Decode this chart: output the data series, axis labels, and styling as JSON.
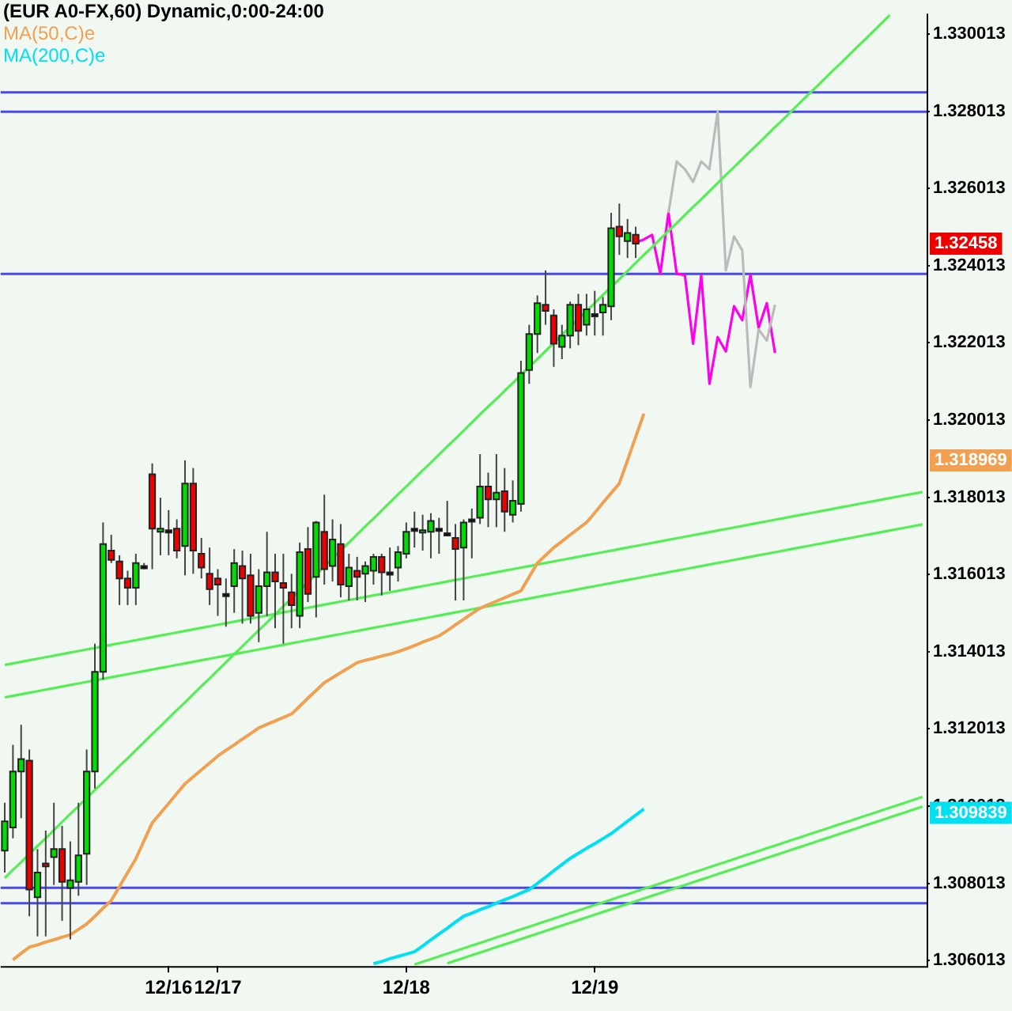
{
  "chart_data": {
    "type": "candlestick",
    "title": "(EUR A0-FX,60) Dynamic,0:00-24:00",
    "categories": [
      null,
      null,
      null,
      null,
      null,
      null,
      null,
      null,
      null,
      null,
      null,
      null,
      null,
      null,
      null,
      null,
      null,
      null,
      null,
      null,
      "12/16",
      null,
      null,
      null,
      null,
      null,
      "12/17",
      null,
      null,
      null,
      null,
      null,
      null,
      null,
      null,
      null,
      null,
      null,
      null,
      null,
      null,
      null,
      null,
      null,
      null,
      null,
      null,
      null,
      null,
      "12/18",
      null,
      null,
      null,
      null,
      null,
      null,
      null,
      null,
      null,
      null,
      null,
      null,
      null,
      null,
      null,
      null,
      null,
      null,
      null,
      null,
      null,
      null,
      "12/19",
      null,
      null,
      null,
      null,
      null,
      null,
      null,
      null,
      null,
      null,
      null,
      null,
      null,
      null,
      null,
      null,
      null,
      null,
      null,
      null,
      null,
      null,
      null,
      null,
      null,
      null,
      null,
      null,
      null,
      null,
      null,
      null,
      null,
      null,
      null,
      null,
      null,
      null,
      null,
      null
    ],
    "ohlc": [
      [
        1.30886,
        1.3101,
        1.30829,
        1.30962
      ],
      [
        1.30946,
        1.3116,
        1.30918,
        1.31091
      ],
      [
        1.31091,
        1.31212,
        1.3097,
        1.31123
      ],
      [
        1.31119,
        1.31148,
        1.30716,
        1.30785
      ],
      [
        1.30765,
        1.3089,
        1.30664,
        1.30829
      ],
      [
        1.30853,
        1.30938,
        1.30664,
        1.30845
      ],
      [
        1.30869,
        1.3101,
        1.30797,
        1.3089
      ],
      [
        1.3089,
        1.3095,
        1.30704,
        1.30805
      ],
      [
        1.30789,
        1.3091,
        1.30656,
        1.30809
      ],
      [
        1.30805,
        1.3101,
        1.30769,
        1.30874
      ],
      [
        1.30878,
        1.31148,
        1.30797,
        1.31091
      ],
      [
        1.31091,
        1.31422,
        1.31047,
        1.31349
      ],
      [
        1.31349,
        1.31736,
        1.31329,
        1.3168
      ],
      [
        1.31663,
        1.31704,
        1.31631,
        1.31639
      ],
      [
        1.31635,
        1.31651,
        1.31522,
        1.31591
      ],
      [
        1.31591,
        1.31611,
        1.31522,
        1.31567
      ],
      [
        1.31567,
        1.31655,
        1.31522,
        1.31631
      ],
      [
        1.31623,
        1.31631,
        1.31615,
        1.31623
      ],
      [
        1.31861,
        1.31889,
        1.31615,
        1.3172
      ],
      [
        1.31712,
        1.318,
        1.31651,
        1.3172
      ],
      [
        1.31716,
        1.31768,
        1.31651,
        1.31716
      ],
      [
        1.3172,
        1.31744,
        1.31643,
        1.31663
      ],
      [
        1.31675,
        1.31897,
        1.31599,
        1.31837
      ],
      [
        1.31837,
        1.31877,
        1.31603,
        1.31663
      ],
      [
        1.31655,
        1.31696,
        1.31591,
        1.31619
      ],
      [
        1.31603,
        1.31671,
        1.31522,
        1.31563
      ],
      [
        1.31591,
        1.31615,
        1.31494,
        1.31575
      ],
      [
        1.31551,
        1.31591,
        1.31466,
        1.31551
      ],
      [
        1.31571,
        1.31667,
        1.31502,
        1.31631
      ],
      [
        1.31623,
        1.31663,
        1.31474,
        1.31591
      ],
      [
        1.31599,
        1.31655,
        1.31474,
        1.31494
      ],
      [
        1.31502,
        1.31615,
        1.31426,
        1.31571
      ],
      [
        1.31571,
        1.31712,
        1.31494,
        1.31607
      ],
      [
        1.31607,
        1.31655,
        1.31462,
        1.31583
      ],
      [
        1.31579,
        1.31655,
        1.31422,
        1.31567
      ],
      [
        1.31555,
        1.31603,
        1.31462,
        1.31522
      ],
      [
        1.31494,
        1.31684,
        1.31462,
        1.31659
      ],
      [
        1.31667,
        1.31724,
        1.3153,
        1.31551
      ],
      [
        1.31595,
        1.3174,
        1.3149,
        1.31736
      ],
      [
        1.31712,
        1.31808,
        1.31575,
        1.31615
      ],
      [
        1.31623,
        1.31744,
        1.31583,
        1.31692
      ],
      [
        1.3168,
        1.31732,
        1.31542,
        1.31575
      ],
      [
        1.31571,
        1.31655,
        1.31534,
        1.31619
      ],
      [
        1.31611,
        1.31647,
        1.31534,
        1.31595
      ],
      [
        1.31603,
        1.31635,
        1.3153,
        1.31623
      ],
      [
        1.31611,
        1.31655,
        1.31575,
        1.31647
      ],
      [
        1.31647,
        1.31655,
        1.31547,
        1.31607
      ],
      [
        1.31607,
        1.31671,
        1.31559,
        1.31607
      ],
      [
        1.31619,
        1.31675,
        1.31583,
        1.31659
      ],
      [
        1.31655,
        1.31736,
        1.31643,
        1.31712
      ],
      [
        1.3172,
        1.31764,
        1.31671,
        1.3172
      ],
      [
        1.31712,
        1.31756,
        1.31663,
        1.31716
      ],
      [
        1.31712,
        1.3176,
        1.31643,
        1.3174
      ],
      [
        1.3172,
        1.31748,
        1.31655,
        1.3172
      ],
      [
        1.31708,
        1.31792,
        1.317,
        1.31708
      ],
      [
        1.31696,
        1.31732,
        1.31534,
        1.31667
      ],
      [
        1.31671,
        1.31744,
        1.31534,
        1.31736
      ],
      [
        1.31744,
        1.31772,
        1.31643,
        1.31744
      ],
      [
        1.31748,
        1.31913,
        1.31732,
        1.31829
      ],
      [
        1.31829,
        1.31865,
        1.31724,
        1.31796
      ],
      [
        1.31796,
        1.31913,
        1.31724,
        1.31813
      ],
      [
        1.31817,
        1.31877,
        1.31712,
        1.31764
      ],
      [
        1.31756,
        1.31845,
        1.31736,
        1.31792
      ],
      [
        1.31784,
        1.32155,
        1.31764,
        1.32123
      ],
      [
        1.32131,
        1.32248,
        1.32095,
        1.32224
      ],
      [
        1.32224,
        1.32324,
        1.32175,
        1.32304
      ],
      [
        1.323,
        1.32389,
        1.32248,
        1.32284
      ],
      [
        1.32272,
        1.32288,
        1.32139,
        1.32199
      ],
      [
        1.32191,
        1.32248,
        1.32159,
        1.3222
      ],
      [
        1.3222,
        1.32308,
        1.32187,
        1.323
      ],
      [
        1.323,
        1.32328,
        1.32195,
        1.32232
      ],
      [
        1.32248,
        1.32328,
        1.3222,
        1.32288
      ],
      [
        1.32276,
        1.32336,
        1.3222,
        1.32276
      ],
      [
        1.3228,
        1.3232,
        1.3222,
        1.323
      ],
      [
        1.32296,
        1.32538,
        1.3226,
        1.32498
      ],
      [
        1.32502,
        1.32562,
        1.32429,
        1.32477
      ],
      [
        1.32465,
        1.32522,
        1.32421,
        1.32486
      ],
      [
        1.32481,
        1.32502,
        1.32421,
        1.32458
      ],
      null,
      null,
      null,
      null,
      null,
      null,
      null,
      null,
      null,
      null,
      null,
      null,
      null,
      null,
      null,
      null,
      null,
      null,
      null,
      null,
      null,
      null,
      null,
      null,
      null,
      null,
      null,
      null,
      null,
      null,
      null,
      null,
      null,
      null,
      null
    ],
    "colors": [
      "#00dd00",
      "#00dd00",
      "#00dd00",
      "#ee0000",
      "#00dd00",
      "#ee0000",
      "#00dd00",
      "#ee0000",
      "#00dd00",
      "#00dd00",
      "#00dd00",
      "#00dd00",
      "#00dd00",
      "#ee0000",
      "#ee0000",
      "#ee0000",
      "#00dd00",
      "#000000",
      "#ee0000",
      "#00dd00",
      "#000000",
      "#ee0000",
      "#00dd00",
      "#ee0000",
      "#ee0000",
      "#ee0000",
      "#ee0000",
      "#000000",
      "#00dd00",
      "#ee0000",
      "#ee0000",
      "#00dd00",
      "#00dd00",
      "#ee0000",
      "#ee0000",
      "#ee0000",
      "#00dd00",
      "#ee0000",
      "#00dd00",
      "#ee0000",
      "#00dd00",
      "#ee0000",
      "#00dd00",
      "#ee0000",
      "#00dd00",
      "#00dd00",
      "#ee0000",
      "#000000",
      "#00dd00",
      "#00dd00",
      "#000000",
      "#00dd00",
      "#00dd00",
      "#000000",
      "#000000",
      "#ee0000",
      "#00dd00",
      "#000000",
      "#00dd00",
      "#ee0000",
      "#00dd00",
      "#ee0000",
      "#00dd00",
      "#00dd00",
      "#00dd00",
      "#00dd00",
      "#ee0000",
      "#ee0000",
      "#00dd00",
      "#00dd00",
      "#ee0000",
      "#00dd00",
      "#000000",
      "#00dd00",
      "#00dd00",
      "#ee0000",
      "#00dd00",
      "#ee0000",
      null,
      null,
      null,
      null,
      null,
      null,
      null,
      null,
      null,
      null,
      null,
      null,
      null,
      null,
      null,
      null,
      null,
      null,
      null,
      null,
      null,
      null,
      null,
      null,
      null,
      null,
      null,
      null,
      null,
      null,
      null,
      null,
      null,
      null,
      null
    ],
    "series": [
      {
        "type": "line",
        "name": "MA(50,C)e",
        "color": "#f0a050",
        "values": [
          null,
          1.30603,
          1.3062,
          1.30636,
          1.30642,
          1.30649,
          1.30655,
          1.30662,
          1.30668,
          1.30682,
          1.30696,
          1.30716,
          1.30737,
          1.30757,
          1.30793,
          1.30829,
          1.30865,
          1.30912,
          1.30958,
          1.30983,
          1.31008,
          1.31034,
          1.31059,
          1.31077,
          1.31095,
          1.31113,
          1.31131,
          1.31146,
          1.3116,
          1.31175,
          1.31189,
          1.31204,
          1.31213,
          1.31222,
          1.31231,
          1.3124,
          1.3126,
          1.31281,
          1.31301,
          1.31321,
          1.31334,
          1.31347,
          1.3136,
          1.31373,
          1.31379,
          1.31384,
          1.3139,
          1.31395,
          1.31401,
          1.31409,
          1.31417,
          1.31426,
          1.31434,
          1.31442,
          1.31456,
          1.31471,
          1.31485,
          1.315,
          1.31514,
          1.31523,
          1.31532,
          1.31541,
          1.3155,
          1.31559,
          1.31595,
          1.31631,
          1.31651,
          1.31671,
          1.31687,
          1.31704,
          1.3172,
          1.31736,
          1.31761,
          1.31787,
          1.31812,
          1.31837,
          1.31897,
          1.31958,
          1.32018,
          null,
          null,
          null,
          null,
          null,
          null,
          null,
          null,
          null,
          null,
          null,
          null,
          null,
          null,
          null,
          null,
          null,
          null,
          null,
          null,
          null,
          null,
          null,
          null,
          null,
          null,
          null,
          null,
          null,
          null,
          null,
          null,
          null,
          null
        ]
      },
      {
        "type": "line",
        "name": "MA(200,C)e",
        "color": "#00e0f0",
        "values": [
          null,
          null,
          null,
          null,
          null,
          null,
          null,
          null,
          null,
          null,
          null,
          null,
          null,
          null,
          null,
          null,
          null,
          null,
          null,
          null,
          null,
          null,
          null,
          null,
          null,
          null,
          null,
          null,
          null,
          null,
          null,
          null,
          null,
          null,
          null,
          null,
          null,
          null,
          null,
          null,
          null,
          null,
          null,
          null,
          null,
          1.30593,
          1.30599,
          1.30606,
          1.30612,
          1.30618,
          1.30624,
          1.30639,
          1.30655,
          1.3067,
          1.30685,
          1.30701,
          1.30716,
          1.30724,
          1.30733,
          1.30741,
          1.3075,
          1.30759,
          1.30767,
          1.30776,
          1.30785,
          1.30801,
          1.30817,
          1.30834,
          1.3085,
          1.30866,
          1.30879,
          1.30892,
          1.30904,
          1.30917,
          1.3093,
          1.30946,
          1.30962,
          1.30978,
          1.30994,
          null,
          null,
          null,
          null,
          null,
          null,
          null,
          null,
          null,
          null,
          null,
          null,
          null,
          null,
          null,
          null,
          null,
          null,
          null,
          null,
          null,
          null,
          null,
          null,
          null,
          null,
          null,
          null,
          null,
          null,
          null,
          null,
          null,
          null
        ]
      },
      {
        "type": "line",
        "color": "#55ee55",
        "values": [
          1.30815,
          1.30836,
          1.30856,
          1.30877,
          1.30898,
          1.30918,
          1.30939,
          1.3096,
          1.30981,
          1.31001,
          1.31022,
          1.31043,
          1.31063,
          1.31084,
          1.31105,
          1.31125,
          1.31146,
          1.31167,
          1.31188,
          1.31208,
          1.31229,
          1.3125,
          1.3127,
          1.31291,
          1.31312,
          1.31332,
          1.31353,
          1.31374,
          1.31395,
          1.31415,
          1.31436,
          1.31457,
          1.31477,
          1.31498,
          1.31519,
          1.31539,
          1.3156,
          1.31581,
          1.31602,
          1.31622,
          1.31643,
          1.31664,
          1.31684,
          1.31705,
          1.31726,
          1.31746,
          1.31767,
          1.31788,
          1.31809,
          1.31829,
          1.3185,
          1.31871,
          1.31891,
          1.31912,
          1.31933,
          1.31953,
          1.31974,
          1.31995,
          1.32016,
          1.32036,
          1.32056,
          1.32077,
          1.32097,
          1.32118,
          1.32139,
          1.32159,
          1.3218,
          1.32201,
          1.32222,
          1.32242,
          1.32263,
          1.32284,
          1.32304,
          1.32325,
          1.32346,
          1.32366,
          1.32387,
          1.32408,
          1.32429,
          1.32449,
          1.3247,
          1.32491,
          1.32511,
          1.32532,
          1.32553,
          1.32573,
          1.32594,
          1.32615,
          1.32636,
          1.32656,
          1.32677,
          1.32698,
          1.32718,
          1.32739,
          1.3276,
          1.3278,
          1.32801,
          1.32822,
          1.32843,
          1.32863,
          1.32884,
          1.32905,
          1.32925,
          1.32946,
          1.32967,
          1.32987,
          1.33008,
          1.33029,
          1.3305,
          null,
          null,
          null,
          null
        ]
      },
      {
        "type": "line",
        "color": "#55ee55",
        "values": [
          1.31367,
          1.31371,
          1.31375,
          1.31379,
          1.31383,
          1.31387,
          1.31391,
          1.31395,
          1.31399,
          1.31403,
          1.31407,
          1.31411,
          1.31415,
          1.31419,
          1.31423,
          1.31427,
          1.31431,
          1.31435,
          1.31439,
          1.31443,
          1.31447,
          1.31451,
          1.31455,
          1.31459,
          1.31463,
          1.31467,
          1.31471,
          1.31475,
          1.31479,
          1.31483,
          1.31487,
          1.31491,
          1.31495,
          1.31499,
          1.31503,
          1.31507,
          1.31511,
          1.31515,
          1.31519,
          1.31523,
          1.31527,
          1.31531,
          1.31535,
          1.31539,
          1.31543,
          1.31547,
          1.31551,
          1.31555,
          1.31559,
          1.31563,
          1.31567,
          1.31571,
          1.31575,
          1.31579,
          1.31583,
          1.31587,
          1.31591,
          1.31595,
          1.31599,
          1.31603,
          1.31607,
          1.31611,
          1.31615,
          1.31619,
          1.31623,
          1.31627,
          1.31631,
          1.31635,
          1.31639,
          1.31643,
          1.31647,
          1.31651,
          1.31655,
          1.31659,
          1.31663,
          1.31667,
          1.31671,
          1.31675,
          1.31679,
          1.31683,
          1.31687,
          1.31691,
          1.31695,
          1.31699,
          1.31703,
          1.31707,
          1.31711,
          1.31715,
          1.31719,
          1.31723,
          1.31727,
          1.31731,
          1.31735,
          1.31739,
          1.31743,
          1.31747,
          1.31751,
          1.31755,
          1.31759,
          1.31763,
          1.31767,
          1.31771,
          1.31775,
          1.31779,
          1.31783,
          1.31787,
          1.31791,
          1.31795,
          1.31799,
          1.31803,
          1.31807,
          1.31811,
          1.31815
        ]
      },
      {
        "type": "line",
        "color": "#55ee55",
        "values": [
          1.31283,
          1.31287,
          1.31291,
          1.31295,
          1.31299,
          1.31303,
          1.31307,
          1.31311,
          1.31315,
          1.31319,
          1.31323,
          1.31327,
          1.31331,
          1.31335,
          1.31339,
          1.31343,
          1.31347,
          1.31351,
          1.31355,
          1.31359,
          1.31363,
          1.31367,
          1.31371,
          1.31375,
          1.31379,
          1.31383,
          1.31387,
          1.31391,
          1.31395,
          1.31399,
          1.31403,
          1.31407,
          1.31411,
          1.31415,
          1.31419,
          1.31423,
          1.31427,
          1.31431,
          1.31435,
          1.31439,
          1.31443,
          1.31447,
          1.31451,
          1.31455,
          1.31459,
          1.31463,
          1.31467,
          1.31471,
          1.31475,
          1.31479,
          1.31483,
          1.31487,
          1.31491,
          1.31495,
          1.31499,
          1.31503,
          1.31507,
          1.31511,
          1.31515,
          1.31519,
          1.31523,
          1.31527,
          1.31531,
          1.31535,
          1.31539,
          1.31543,
          1.31547,
          1.31551,
          1.31555,
          1.31559,
          1.31563,
          1.31567,
          1.31571,
          1.31575,
          1.31579,
          1.31583,
          1.31587,
          1.31591,
          1.31595,
          1.31599,
          1.31603,
          1.31607,
          1.31611,
          1.31615,
          1.31619,
          1.31623,
          1.31627,
          1.31631,
          1.31635,
          1.31639,
          1.31643,
          1.31647,
          1.31651,
          1.31655,
          1.31659,
          1.31663,
          1.31667,
          1.31671,
          1.31675,
          1.31679,
          1.31683,
          1.31687,
          1.31691,
          1.31695,
          1.31699,
          1.31703,
          1.31707,
          1.31711,
          1.31715,
          1.31719,
          1.31723,
          1.31727,
          1.31731
        ]
      },
      {
        "type": "line",
        "color": "#55ee55",
        "values": [
          null,
          null,
          null,
          null,
          null,
          null,
          null,
          null,
          null,
          null,
          null,
          null,
          null,
          null,
          null,
          null,
          null,
          null,
          null,
          null,
          null,
          null,
          null,
          null,
          null,
          null,
          null,
          null,
          null,
          null,
          null,
          null,
          null,
          null,
          null,
          null,
          null,
          null,
          null,
          null,
          null,
          null,
          null,
          null,
          null,
          null,
          null,
          null,
          null,
          null,
          1.30591,
          1.30598,
          1.30605,
          1.30612,
          1.30619,
          1.30626,
          1.30633,
          1.3064,
          1.30647,
          1.30654,
          1.30661,
          1.30668,
          1.30675,
          1.30682,
          1.30689,
          1.30696,
          1.30703,
          1.3071,
          1.30717,
          1.30724,
          1.30731,
          1.30738,
          1.30745,
          1.30752,
          1.30759,
          1.30766,
          1.30773,
          1.3078,
          1.30787,
          1.30794,
          1.30801,
          1.30808,
          1.30815,
          1.30822,
          1.30829,
          1.30836,
          1.30843,
          1.3085,
          1.30857,
          1.30864,
          1.30871,
          1.30878,
          1.30885,
          1.30892,
          1.30899,
          1.30906,
          1.30913,
          1.3092,
          1.30927,
          1.30934,
          1.30941,
          1.30948,
          1.30955,
          1.30962,
          1.30969,
          1.30976,
          1.30983,
          1.3099,
          1.30997,
          1.31004,
          1.31011,
          1.31018,
          1.31025
        ]
      },
      {
        "type": "line",
        "color": "#55ee55",
        "values": [
          null,
          null,
          null,
          null,
          null,
          null,
          null,
          null,
          null,
          null,
          null,
          null,
          null,
          null,
          null,
          null,
          null,
          null,
          null,
          null,
          null,
          null,
          null,
          null,
          null,
          null,
          null,
          null,
          null,
          null,
          null,
          null,
          null,
          null,
          null,
          null,
          null,
          null,
          null,
          null,
          null,
          null,
          null,
          null,
          null,
          null,
          null,
          null,
          null,
          null,
          null,
          null,
          null,
          null,
          1.30594,
          1.30601,
          1.30608,
          1.30615,
          1.30622,
          1.30629,
          1.30636,
          1.30643,
          1.3065,
          1.30657,
          1.30664,
          1.30671,
          1.30678,
          1.30685,
          1.30692,
          1.30699,
          1.30706,
          1.30713,
          1.3072,
          1.30727,
          1.30734,
          1.30741,
          1.30748,
          1.30755,
          1.30762,
          1.30769,
          1.30776,
          1.30783,
          1.3079,
          1.30797,
          1.30804,
          1.30811,
          1.30818,
          1.30825,
          1.30832,
          1.30839,
          1.30846,
          1.30853,
          1.3086,
          1.30867,
          1.30874,
          1.30881,
          1.30888,
          1.30895,
          1.30902,
          1.30909,
          1.30916,
          1.30923,
          1.3093,
          1.30937,
          1.30944,
          1.30951,
          1.30958,
          1.30965,
          1.30972,
          1.30979,
          1.30986,
          1.30993,
          1.31
        ]
      },
      {
        "type": "line",
        "color": "#bbbbbb",
        "values": [
          null,
          null,
          null,
          null,
          null,
          null,
          null,
          null,
          null,
          null,
          null,
          null,
          null,
          null,
          null,
          null,
          null,
          null,
          null,
          null,
          null,
          null,
          null,
          null,
          null,
          null,
          null,
          null,
          null,
          null,
          null,
          null,
          null,
          null,
          null,
          null,
          null,
          null,
          null,
          null,
          null,
          null,
          null,
          null,
          null,
          null,
          null,
          null,
          null,
          null,
          null,
          null,
          null,
          null,
          null,
          null,
          null,
          null,
          null,
          null,
          null,
          null,
          null,
          null,
          null,
          null,
          null,
          null,
          null,
          null,
          null,
          null,
          null,
          null,
          null,
          null,
          null,
          null,
          null,
          null,
          null,
          1.32538,
          1.32671,
          1.32651,
          1.32618,
          1.32671,
          1.32651,
          1.328,
          1.32389,
          1.32477,
          1.32441,
          1.32087,
          1.32236,
          1.32207,
          1.323,
          null,
          null,
          null,
          null,
          null,
          null,
          null,
          null,
          null,
          null,
          null,
          null,
          null,
          null,
          null,
          null,
          null,
          null
        ]
      },
      {
        "type": "line",
        "color": "#ff00ee",
        "values": [
          null,
          null,
          null,
          null,
          null,
          null,
          null,
          null,
          null,
          null,
          null,
          null,
          null,
          null,
          null,
          null,
          null,
          null,
          null,
          null,
          null,
          null,
          null,
          null,
          null,
          null,
          null,
          null,
          null,
          null,
          null,
          null,
          null,
          null,
          null,
          null,
          null,
          null,
          null,
          null,
          null,
          null,
          null,
          null,
          null,
          null,
          null,
          null,
          null,
          null,
          null,
          null,
          null,
          null,
          null,
          null,
          null,
          null,
          null,
          null,
          null,
          null,
          null,
          null,
          null,
          null,
          null,
          null,
          null,
          null,
          null,
          null,
          null,
          null,
          null,
          null,
          null,
          1.32461,
          1.32469,
          1.32481,
          1.3238,
          1.32538,
          1.3238,
          1.32377,
          1.32199,
          1.32377,
          1.32095,
          1.32216,
          1.32179,
          1.32296,
          1.3226,
          1.32377,
          1.3224,
          1.32304,
          1.32175,
          null,
          null,
          null,
          null,
          null,
          null,
          null,
          null,
          null,
          null,
          null,
          null,
          null,
          null,
          null,
          null,
          null,
          null
        ]
      }
    ],
    "ylim": [
      1.30587,
      1.33054
    ],
    "yticks": [
      1.306013,
      1.308013,
      1.310013,
      1.312013,
      1.314013,
      1.316013,
      1.318013,
      1.320013,
      1.322013,
      1.324013,
      1.326013,
      1.328013,
      1.330013
    ],
    "ref_lines": [
      {
        "axis": "y",
        "value": 1.3285,
        "color": "#4848ee"
      },
      {
        "axis": "y",
        "value": 1.328,
        "color": "#4848ee"
      },
      {
        "axis": "y",
        "value": 1.3238,
        "color": "#4848ee"
      },
      {
        "axis": "y",
        "value": 1.3079,
        "color": "#4848ee"
      },
      {
        "axis": "y",
        "value": 1.3075,
        "color": "#4848ee"
      }
    ],
    "annotations": [
      "1.32458",
      "1.318969",
      "1.309839"
    ],
    "legend": "top left",
    "grid": false,
    "marker": "none",
    "line_style": "solid"
  }
}
